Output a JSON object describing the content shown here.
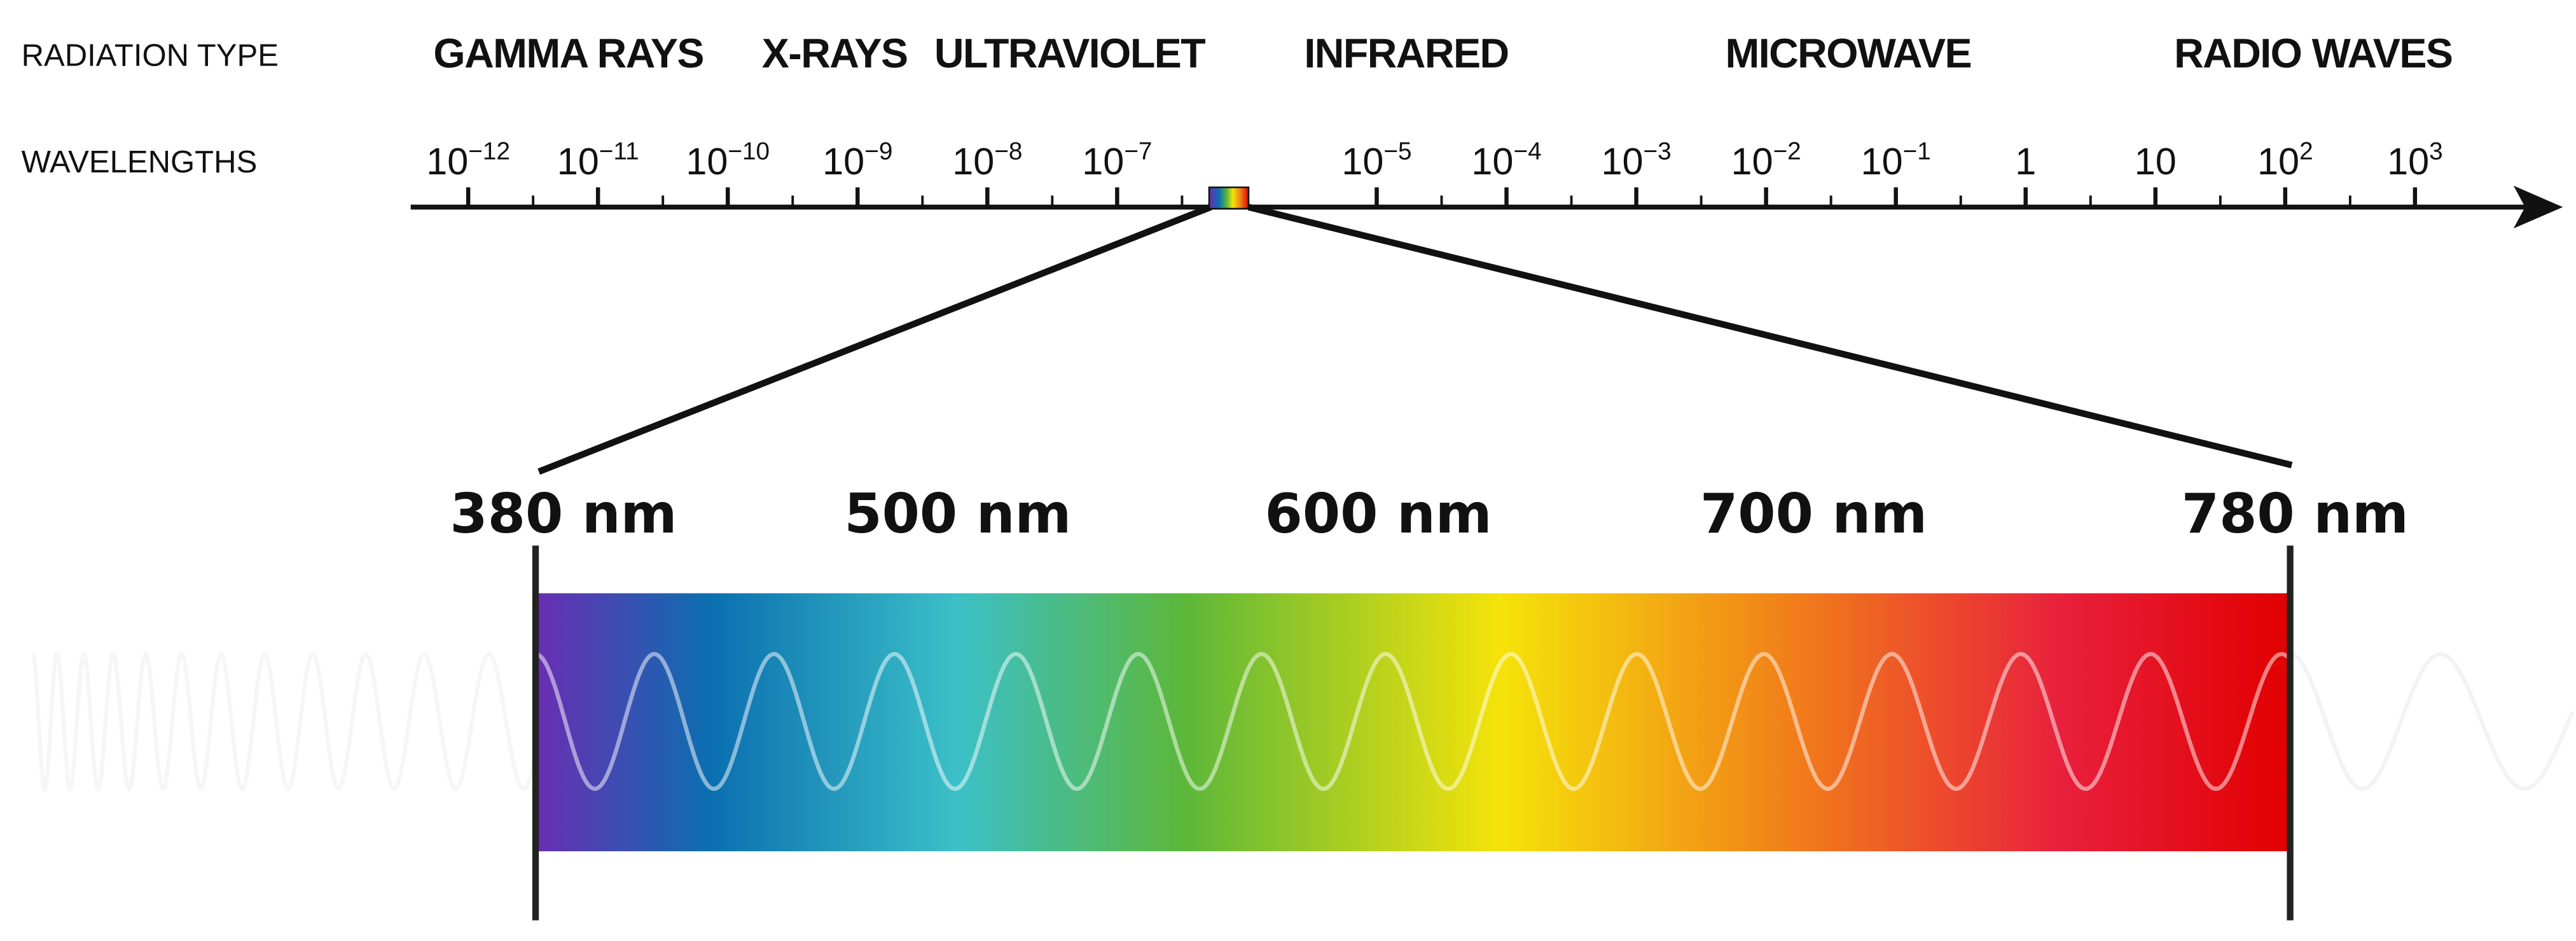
{
  "labels": {
    "radiation_type": "RADIATION TYPE",
    "wavelengths": "WAVELENGTHS"
  },
  "radiation_types": [
    "GAMMA RAYS",
    "X-RAYS",
    "ULTRAVIOLET",
    "INFRARED",
    "MICROWAVE",
    "RADIO WAVES"
  ],
  "wavelength_ticks": [
    {
      "base": "10",
      "exponent": "−12"
    },
    {
      "base": "10",
      "exponent": "−11"
    },
    {
      "base": "10",
      "exponent": "−10"
    },
    {
      "base": "10",
      "exponent": "−9"
    },
    {
      "base": "10",
      "exponent": "−8"
    },
    {
      "base": "10",
      "exponent": "−7"
    },
    {
      "base": "10",
      "exponent": "−5"
    },
    {
      "base": "10",
      "exponent": "−4"
    },
    {
      "base": "10",
      "exponent": "−3"
    },
    {
      "base": "10",
      "exponent": "−2"
    },
    {
      "base": "10",
      "exponent": "−1"
    },
    {
      "base": "1"
    },
    {
      "base": "10"
    },
    {
      "base": "10",
      "exponent": "2"
    },
    {
      "base": "10",
      "exponent": "3"
    }
  ],
  "visible_spectrum": [
    "380 nm",
    "500 nm",
    "600 nm",
    "700 nm",
    "780 nm"
  ]
}
